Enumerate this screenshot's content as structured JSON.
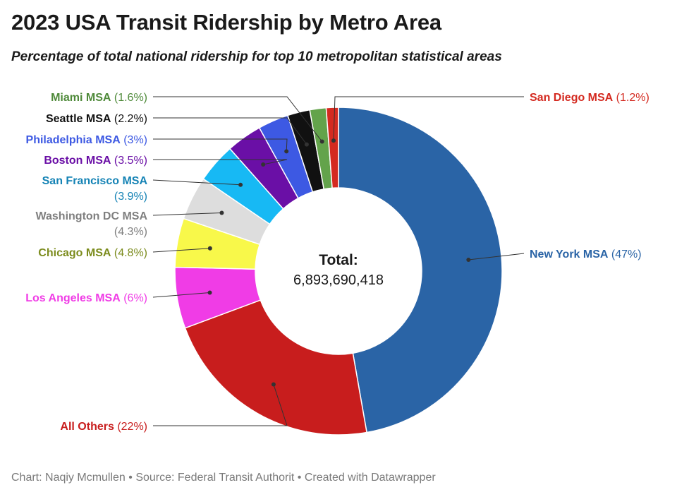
{
  "title": "2023 USA Transit Ridership by Metro Area",
  "subtitle": "Percentage of total national ridership for top 10 metropolitan statistical areas",
  "footer": "Chart: Naqiy Mcmullen • Source: Federal Transit Authorit • Created with Datawrapper",
  "chart_data": {
    "type": "pie",
    "variant": "donut",
    "center_label": "Total:",
    "center_value": "6,893,690,418",
    "start": "12 o'clock, clockwise",
    "slices": [
      {
        "name": "New York MSA",
        "value": 47,
        "value_label": "(47%)",
        "color": "#2a64a6"
      },
      {
        "name": "All Others",
        "value": 22,
        "value_label": "(22%)",
        "color": "#c81d1d"
      },
      {
        "name": "Los Angeles MSA",
        "value": 6,
        "value_label": "(6%)",
        "color": "#f03ce6"
      },
      {
        "name": "Chicago MSA",
        "value": 4.8,
        "value_label": "(4.8%)",
        "color": "#f8f84a",
        "label_color": "#7c8c1e"
      },
      {
        "name": "Washington DC MSA",
        "value": 4.3,
        "value_label": "(4.3%)",
        "color": "#dddddd",
        "label_color": "#7f7f7f"
      },
      {
        "name": "San Francisco MSA",
        "value": 3.9,
        "value_label": "(3.9%)",
        "color": "#17b9f4",
        "label_color": "#1583b5"
      },
      {
        "name": "Boston MSA",
        "value": 3.5,
        "value_label": "(3.5%)",
        "color": "#6a0fa6"
      },
      {
        "name": "Philadelphia MSA",
        "value": 3,
        "value_label": "(3%)",
        "color": "#3d59e3"
      },
      {
        "name": "Seattle MSA",
        "value": 2.2,
        "value_label": "(2.2%)",
        "color": "#111111"
      },
      {
        "name": "Miami MSA",
        "value": 1.6,
        "value_label": "(1.6%)",
        "color": "#63a34b",
        "label_color": "#4f8a3a"
      },
      {
        "name": "San Diego MSA",
        "value": 1.2,
        "value_label": "(1.2%)",
        "color": "#d42a20"
      }
    ]
  }
}
